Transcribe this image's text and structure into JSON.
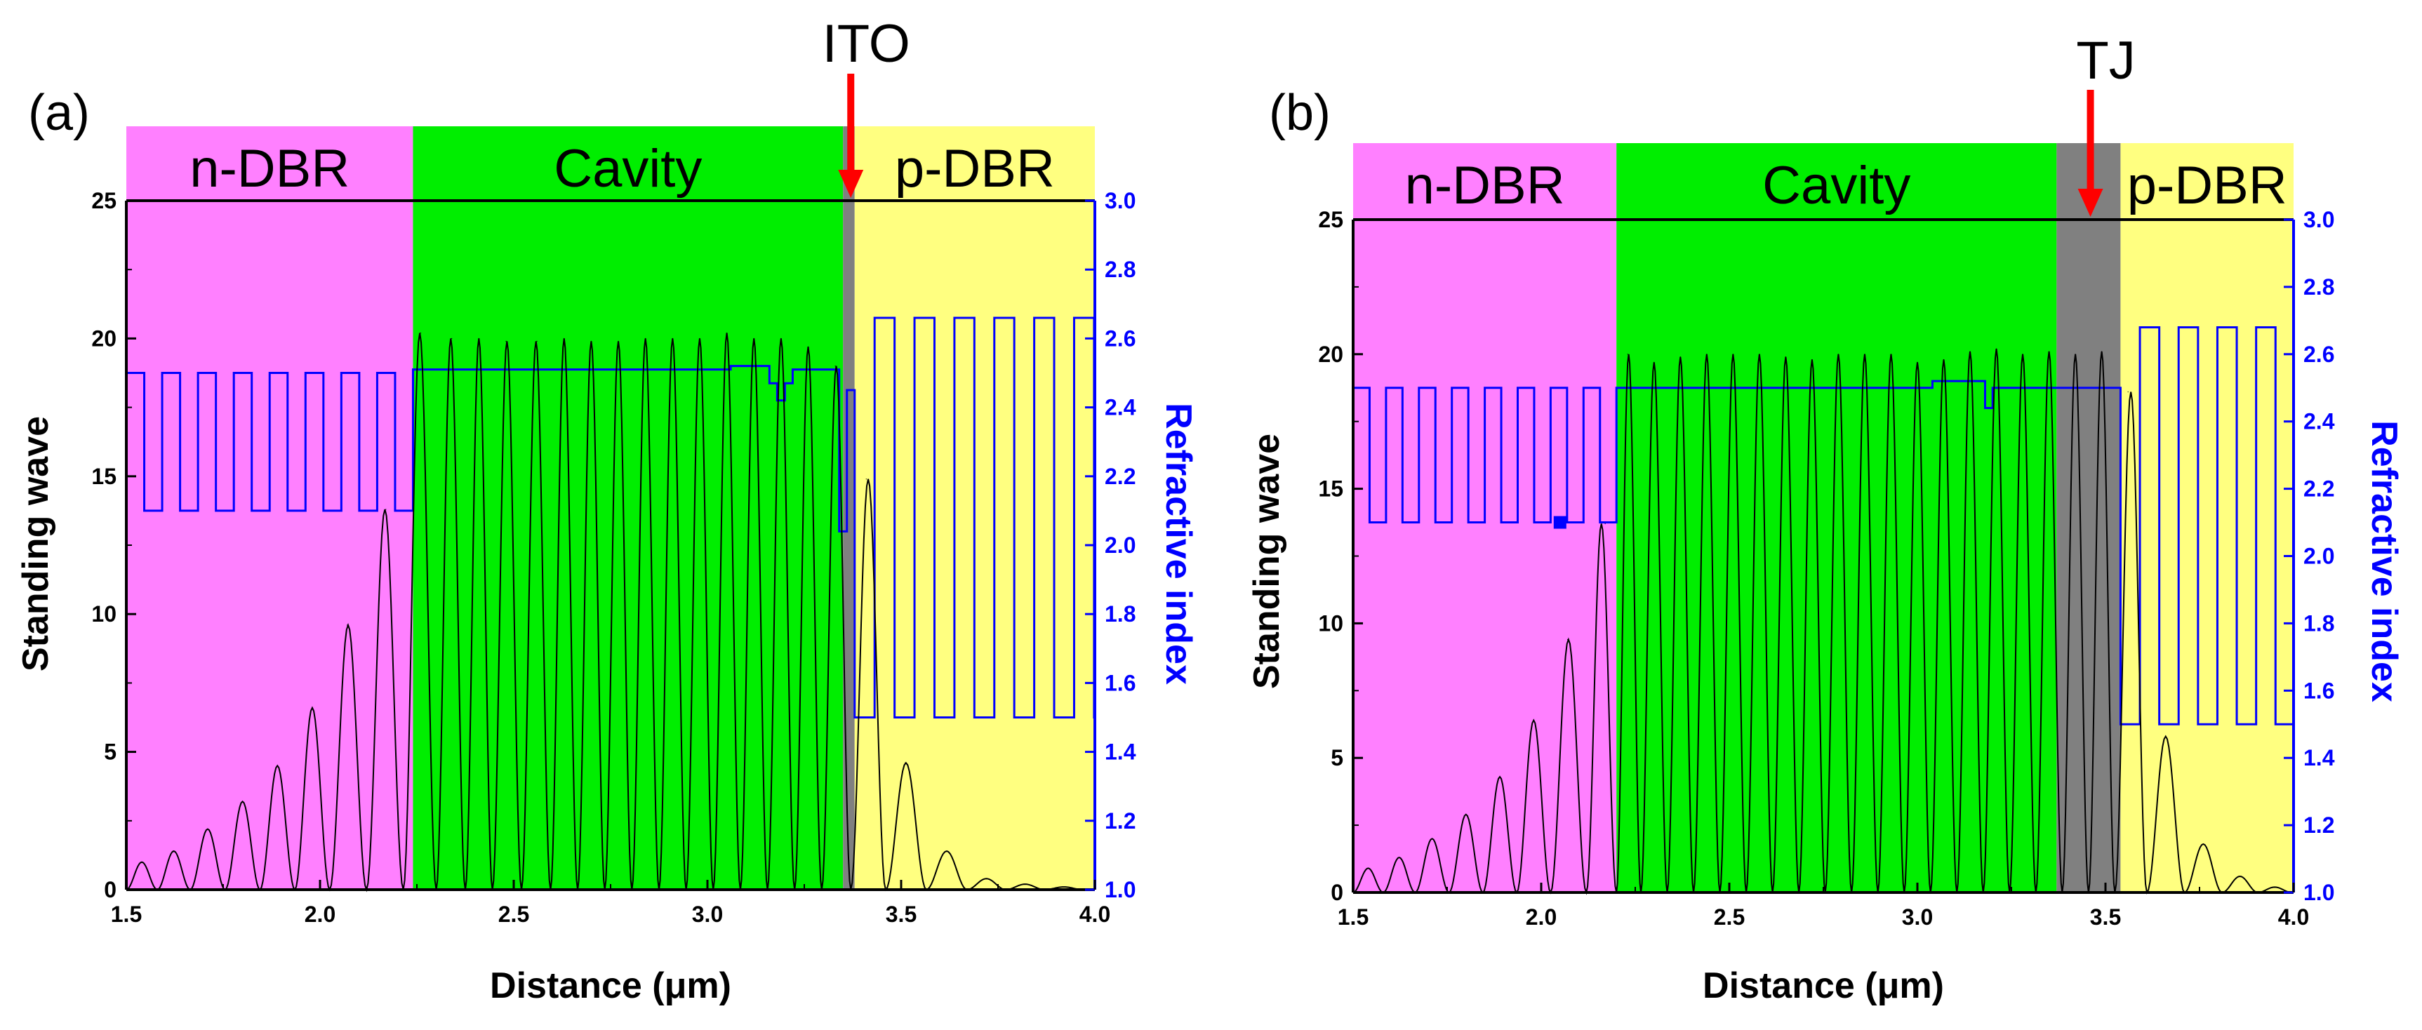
{
  "chart_data": [
    {
      "type": "line",
      "panel_label": "(a)",
      "xlabel": "Distance (μm)",
      "ylabel": "Standing wave",
      "y2label": "Refractive index",
      "xlim": [
        1.5,
        4.0
      ],
      "ylim": [
        0,
        25
      ],
      "y2lim": [
        1.0,
        3.0
      ],
      "xticks": [
        "1.5",
        "2.0",
        "2.5",
        "3.0",
        "3.5",
        "4.0"
      ],
      "yticks": [
        "0",
        "5",
        "10",
        "15",
        "20",
        "25"
      ],
      "y2ticks": [
        "1.0",
        "1.2",
        "1.4",
        "1.6",
        "1.8",
        "2.0",
        "2.2",
        "2.4",
        "2.6",
        "2.8",
        "3.0"
      ],
      "regions": [
        {
          "label": "n-DBR",
          "x": [
            1.5,
            2.24
          ],
          "color": "#ff80ff"
        },
        {
          "label": "Cavity",
          "x": [
            2.24,
            3.35
          ],
          "color": "#00ee00"
        },
        {
          "label": "",
          "x": [
            3.35,
            3.38
          ],
          "color": "#808080"
        },
        {
          "label": "p-DBR",
          "x": [
            3.38,
            4.0
          ],
          "color": "#ffff80"
        }
      ],
      "marker": {
        "label": "ITO",
        "x": 3.37,
        "color": "#ff0000"
      },
      "series": [
        {
          "name": "Standing wave",
          "axis": "left",
          "color": "#000000",
          "peaks": [
            {
              "x": 1.54,
              "y": 1.0
            },
            {
              "x": 1.62,
              "y": 1.4
            },
            {
              "x": 1.71,
              "y": 2.2
            },
            {
              "x": 1.8,
              "y": 3.2
            },
            {
              "x": 1.89,
              "y": 4.5
            },
            {
              "x": 1.98,
              "y": 6.6
            },
            {
              "x": 2.07,
              "y": 9.6
            },
            {
              "x": 2.17,
              "y": 13.8
            },
            {
              "x": 2.26,
              "y": 20.2
            },
            {
              "x": 2.34,
              "y": 20.0
            },
            {
              "x": 2.41,
              "y": 20.0
            },
            {
              "x": 2.48,
              "y": 19.9
            },
            {
              "x": 2.56,
              "y": 19.9
            },
            {
              "x": 2.63,
              "y": 20.0
            },
            {
              "x": 2.7,
              "y": 19.9
            },
            {
              "x": 2.77,
              "y": 19.9
            },
            {
              "x": 2.84,
              "y": 20.0
            },
            {
              "x": 2.91,
              "y": 20.0
            },
            {
              "x": 2.98,
              "y": 20.0
            },
            {
              "x": 3.05,
              "y": 20.2
            },
            {
              "x": 3.12,
              "y": 20.0
            },
            {
              "x": 3.19,
              "y": 20.0
            },
            {
              "x": 3.26,
              "y": 19.7
            },
            {
              "x": 3.33,
              "y": 19.0
            },
            {
              "x": 3.41,
              "y": 14.9
            },
            {
              "x": 3.51,
              "y": 4.6
            },
            {
              "x": 3.62,
              "y": 1.4
            },
            {
              "x": 3.72,
              "y": 0.4
            },
            {
              "x": 3.82,
              "y": 0.2
            },
            {
              "x": 3.92,
              "y": 0.1
            }
          ]
        },
        {
          "name": "Refractive index",
          "axis": "right",
          "color": "#0000ff",
          "steps": [
            {
              "x": [
                1.5,
                2.24
              ],
              "alternating": [
                2.1,
                2.5
              ],
              "period": 0.0925
            },
            {
              "x": [
                2.24,
                3.06
              ],
              "value": 2.51
            },
            {
              "x": [
                3.06,
                3.16
              ],
              "value": 2.52
            },
            {
              "x": [
                3.16,
                3.18
              ],
              "value": 2.47
            },
            {
              "x": [
                3.18,
                3.2
              ],
              "value": 2.42
            },
            {
              "x": [
                3.2,
                3.22
              ],
              "value": 2.47
            },
            {
              "x": [
                3.22,
                3.34
              ],
              "value": 2.51
            },
            {
              "x": [
                3.34,
                3.36
              ],
              "value": 2.04
            },
            {
              "x": [
                3.36,
                3.38
              ],
              "value": 2.45
            },
            {
              "x": [
                3.38,
                4.0
              ],
              "alternating": [
                2.66,
                1.5
              ],
              "period": 0.103
            }
          ]
        }
      ]
    },
    {
      "type": "line",
      "panel_label": "(b)",
      "xlabel": "Distance (μm)",
      "ylabel": "Standing wave",
      "y2label": "Refractive index",
      "xlim": [
        1.5,
        4.0
      ],
      "ylim": [
        0,
        25
      ],
      "y2lim": [
        1.0,
        3.0
      ],
      "xticks": [
        "1.5",
        "2.0",
        "2.5",
        "3.0",
        "3.5",
        "4.0"
      ],
      "yticks": [
        "0",
        "5",
        "10",
        "15",
        "20",
        "25"
      ],
      "y2ticks": [
        "1.0",
        "1.2",
        "1.4",
        "1.6",
        "1.8",
        "2.0",
        "2.2",
        "2.4",
        "2.6",
        "2.8",
        "3.0"
      ],
      "regions": [
        {
          "label": "n-DBR",
          "x": [
            1.5,
            2.2
          ],
          "color": "#ff80ff"
        },
        {
          "label": "Cavity",
          "x": [
            2.2,
            3.37
          ],
          "color": "#00ee00"
        },
        {
          "label": "",
          "x": [
            3.37,
            3.54
          ],
          "color": "#808080"
        },
        {
          "label": "p-DBR",
          "x": [
            3.54,
            4.0
          ],
          "color": "#ffff80"
        }
      ],
      "marker": {
        "label": "TJ",
        "x": 3.46,
        "color": "#ff0000"
      },
      "series": [
        {
          "name": "Standing wave",
          "axis": "left",
          "color": "#000000",
          "peaks": [
            {
              "x": 1.54,
              "y": 0.9
            },
            {
              "x": 1.62,
              "y": 1.3
            },
            {
              "x": 1.71,
              "y": 2.0
            },
            {
              "x": 1.8,
              "y": 2.9
            },
            {
              "x": 1.89,
              "y": 4.3
            },
            {
              "x": 1.98,
              "y": 6.4
            },
            {
              "x": 2.07,
              "y": 9.4
            },
            {
              "x": 2.17,
              "y": 13.7
            },
            {
              "x": 2.23,
              "y": 20.0
            },
            {
              "x": 2.3,
              "y": 19.7
            },
            {
              "x": 2.37,
              "y": 19.9
            },
            {
              "x": 2.44,
              "y": 20.0
            },
            {
              "x": 2.51,
              "y": 20.0
            },
            {
              "x": 2.58,
              "y": 20.0
            },
            {
              "x": 2.65,
              "y": 19.9
            },
            {
              "x": 2.72,
              "y": 19.8
            },
            {
              "x": 2.79,
              "y": 20.0
            },
            {
              "x": 2.86,
              "y": 20.0
            },
            {
              "x": 2.93,
              "y": 20.0
            },
            {
              "x": 3.0,
              "y": 19.7
            },
            {
              "x": 3.07,
              "y": 19.8
            },
            {
              "x": 3.14,
              "y": 20.1
            },
            {
              "x": 3.21,
              "y": 20.2
            },
            {
              "x": 3.28,
              "y": 20.0
            },
            {
              "x": 3.35,
              "y": 20.1
            },
            {
              "x": 3.42,
              "y": 20.0
            },
            {
              "x": 3.49,
              "y": 20.1
            },
            {
              "x": 3.56,
              "y": 18.6
            },
            {
              "x": 3.66,
              "y": 5.8
            },
            {
              "x": 3.76,
              "y": 1.8
            },
            {
              "x": 3.86,
              "y": 0.6
            },
            {
              "x": 3.95,
              "y": 0.2
            }
          ]
        },
        {
          "name": "Refractive index",
          "axis": "right",
          "color": "#0000ff",
          "steps": [
            {
              "x": [
                1.5,
                2.2
              ],
              "alternating": [
                2.1,
                2.5
              ],
              "period": 0.0875
            },
            {
              "x": [
                2.2,
                3.04
              ],
              "value": 2.5
            },
            {
              "x": [
                3.04,
                3.18
              ],
              "value": 2.52
            },
            {
              "x": [
                3.18,
                3.2
              ],
              "value": 2.44
            },
            {
              "x": [
                3.2,
                3.54
              ],
              "value": 2.5
            },
            {
              "x": [
                3.54,
                4.0
              ],
              "alternating": [
                2.68,
                1.5
              ],
              "period": 0.103
            }
          ]
        }
      ]
    }
  ]
}
